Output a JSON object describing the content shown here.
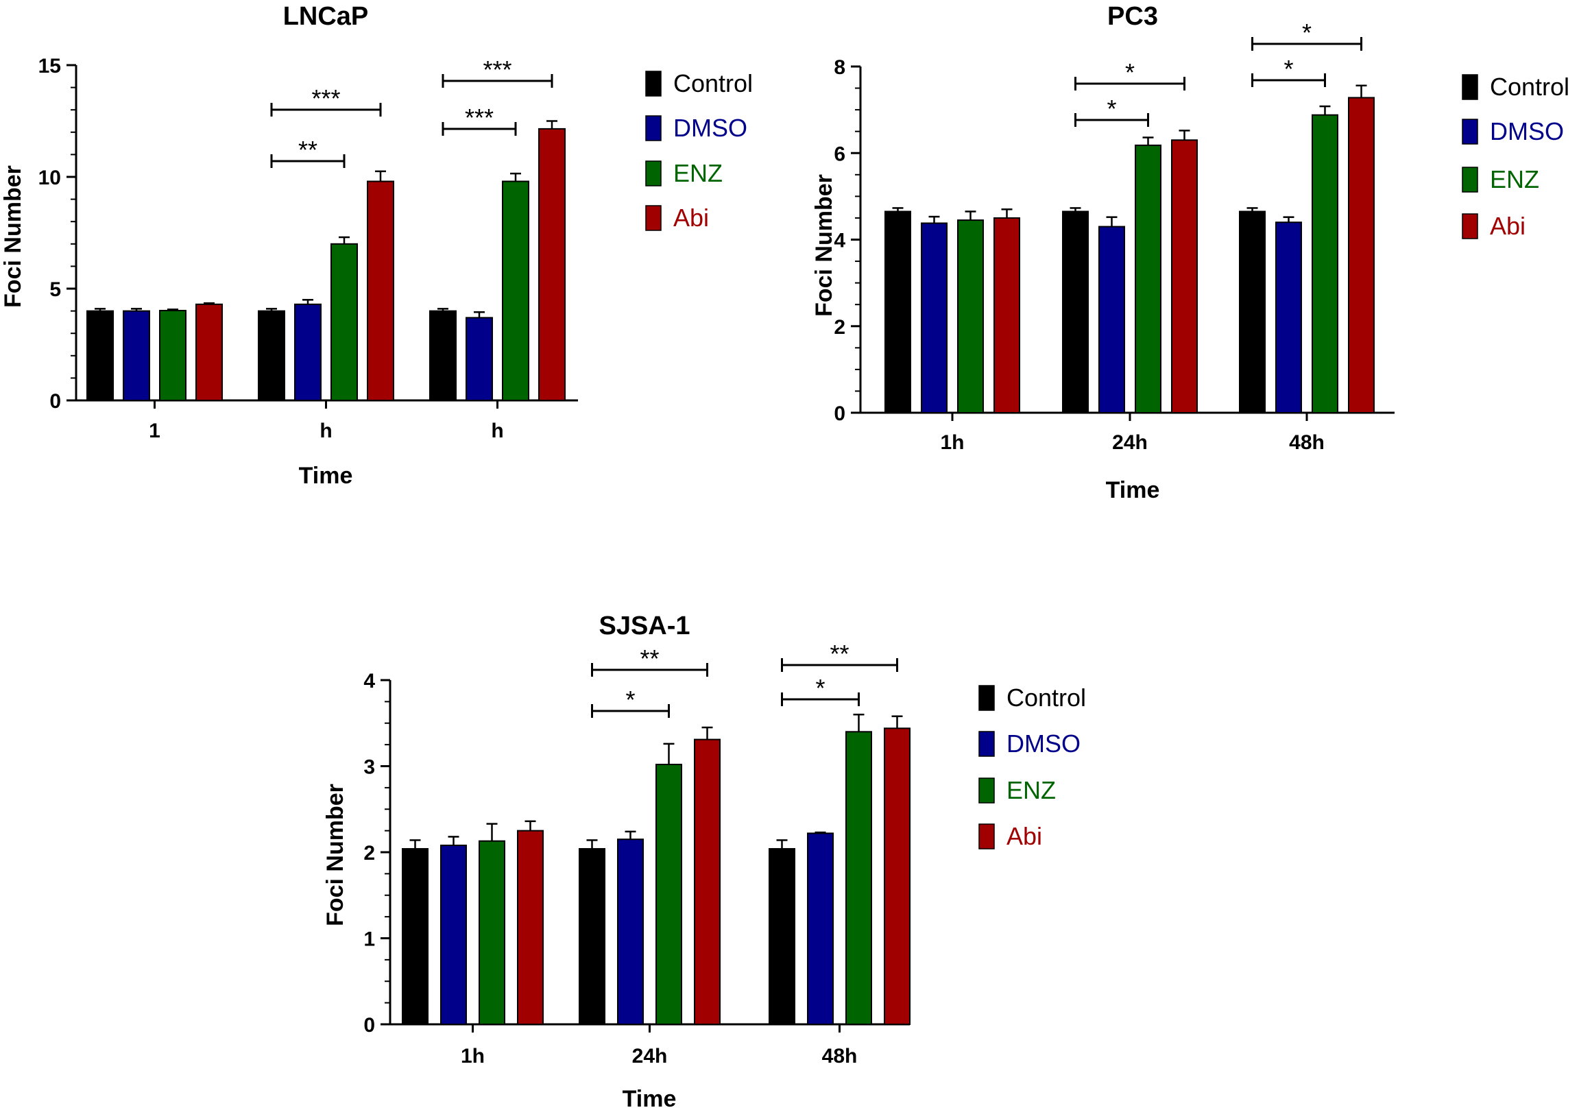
{
  "chart_data": [
    {
      "type": "bar",
      "title": "LNCaP",
      "xlabel": "Time",
      "ylabel": "Foci Number",
      "categories": [
        "1",
        "h",
        "h"
      ],
      "ylim": [
        0,
        15
      ],
      "yticks": [
        0,
        5,
        10,
        15
      ],
      "series": [
        {
          "name": "Control",
          "color": "#000000",
          "values": [
            4.0,
            4.0,
            4.0
          ],
          "errors": [
            0.1,
            0.1,
            0.1
          ]
        },
        {
          "name": "DMSO",
          "color": "#00008B",
          "values": [
            4.0,
            4.3,
            3.7
          ],
          "errors": [
            0.1,
            0.2,
            0.25
          ]
        },
        {
          "name": "ENZ",
          "color": "#006400",
          "values": [
            4.02,
            7.0,
            9.8
          ],
          "errors": [
            0.05,
            0.3,
            0.35
          ]
        },
        {
          "name": "Abi",
          "color": "#A00000",
          "values": [
            4.3,
            9.8,
            12.15
          ],
          "errors": [
            0.05,
            0.45,
            0.35
          ]
        }
      ],
      "significance": [
        {
          "group": 1,
          "from": 0,
          "to": 2,
          "label": "**"
        },
        {
          "group": 1,
          "from": 0,
          "to": 3,
          "label": "***"
        },
        {
          "group": 2,
          "from": 0,
          "to": 2,
          "label": "***"
        },
        {
          "group": 2,
          "from": 0,
          "to": 3,
          "label": "***"
        }
      ]
    },
    {
      "type": "bar",
      "title": "PC3",
      "xlabel": "Time",
      "ylabel": "Foci Number",
      "categories": [
        "1h",
        "24h",
        "48h"
      ],
      "ylim": [
        0,
        8
      ],
      "yticks": [
        0,
        2,
        4,
        6,
        8
      ],
      "series": [
        {
          "name": "Control",
          "color": "#000000",
          "values": [
            4.65,
            4.65,
            4.65
          ],
          "errors": [
            0.08,
            0.08,
            0.08
          ]
        },
        {
          "name": "DMSO",
          "color": "#00008B",
          "values": [
            4.38,
            4.3,
            4.4
          ],
          "errors": [
            0.15,
            0.22,
            0.12
          ]
        },
        {
          "name": "ENZ",
          "color": "#006400",
          "values": [
            4.45,
            6.18,
            6.88
          ],
          "errors": [
            0.2,
            0.18,
            0.2
          ]
        },
        {
          "name": "Abi",
          "color": "#A00000",
          "values": [
            4.5,
            6.3,
            7.28
          ],
          "errors": [
            0.2,
            0.22,
            0.28
          ]
        }
      ],
      "significance": [
        {
          "group": 1,
          "from": 0,
          "to": 2,
          "label": "*"
        },
        {
          "group": 1,
          "from": 0,
          "to": 3,
          "label": "*"
        },
        {
          "group": 2,
          "from": 0,
          "to": 2,
          "label": "*"
        },
        {
          "group": 2,
          "from": 0,
          "to": 3,
          "label": "*"
        }
      ]
    },
    {
      "type": "bar",
      "title": "SJSA-1",
      "xlabel": "Time",
      "ylabel": "Foci Number",
      "categories": [
        "1h",
        "24h",
        "48h"
      ],
      "ylim": [
        0,
        4
      ],
      "yticks": [
        0,
        1,
        2,
        3,
        4
      ],
      "series": [
        {
          "name": "Control",
          "color": "#000000",
          "values": [
            2.04,
            2.04,
            2.04
          ],
          "errors": [
            0.1,
            0.1,
            0.1
          ]
        },
        {
          "name": "DMSO",
          "color": "#00008B",
          "values": [
            2.08,
            2.15,
            2.22
          ],
          "errors": [
            0.1,
            0.09,
            0.01
          ]
        },
        {
          "name": "ENZ",
          "color": "#006400",
          "values": [
            2.13,
            3.02,
            3.4
          ],
          "errors": [
            0.2,
            0.24,
            0.2
          ]
        },
        {
          "name": "Abi",
          "color": "#A00000",
          "values": [
            2.25,
            3.31,
            3.44
          ],
          "errors": [
            0.11,
            0.14,
            0.14
          ]
        }
      ],
      "significance": [
        {
          "group": 1,
          "from": 0,
          "to": 2,
          "label": "*"
        },
        {
          "group": 1,
          "from": 0,
          "to": 3,
          "label": "**"
        },
        {
          "group": 2,
          "from": 0,
          "to": 2,
          "label": "*"
        },
        {
          "group": 2,
          "from": 0,
          "to": 3,
          "label": "**"
        }
      ]
    }
  ]
}
